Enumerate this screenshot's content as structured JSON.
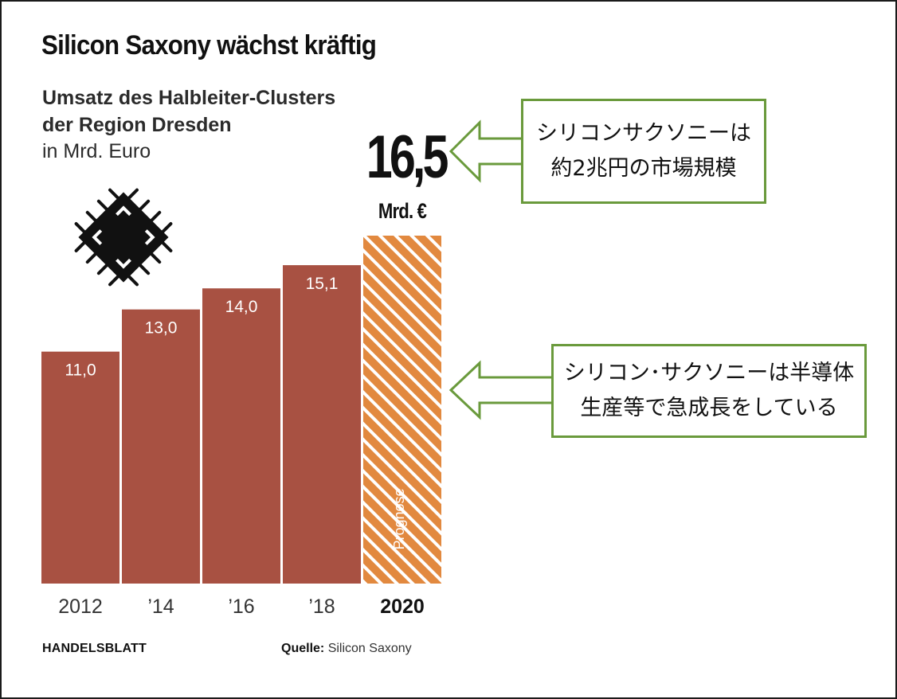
{
  "chart_data": {
    "type": "bar",
    "title": "Silicon Saxony wächst kräftig",
    "subtitle_lines": [
      "Umsatz des Halbleiter-Clusters",
      "der Region Dresden"
    ],
    "unit_label": "in Mrd. Euro",
    "categories": [
      "2012",
      "’14",
      "’16",
      "’18",
      "2020"
    ],
    "values": [
      11.0,
      13.0,
      14.0,
      15.1,
      16.5
    ],
    "value_labels": [
      "11,0",
      "13,0",
      "14,0",
      "15,1",
      "16,5"
    ],
    "highlight": {
      "index": 4,
      "value_text": "16,5",
      "unit_text": "Mrd. €",
      "bar_label": "Prognose"
    },
    "colors": {
      "bar": "#a85142",
      "forecast_stripe_a": "#e2893f",
      "forecast_stripe_b": "#ffffff",
      "label_text": "#ffffff"
    },
    "ylim": [
      0,
      16.5
    ],
    "grid": false,
    "legend": "none"
  },
  "footer": {
    "publisher": "HANDELSBLATT",
    "source_label": "Quelle:",
    "source_value": "Silicon Saxony"
  },
  "callouts": [
    {
      "lines": [
        "シリコンサクソニーは",
        "約2兆円の市場規模"
      ]
    },
    {
      "lines": [
        "シリコン･サクソニーは半導体",
        "生産等で急成長をしている"
      ]
    }
  ],
  "icons": {
    "chip": "microchip-icon",
    "arrow": "arrow-left-icon"
  },
  "accent_colors": {
    "callout_border": "#6a9a3c"
  }
}
